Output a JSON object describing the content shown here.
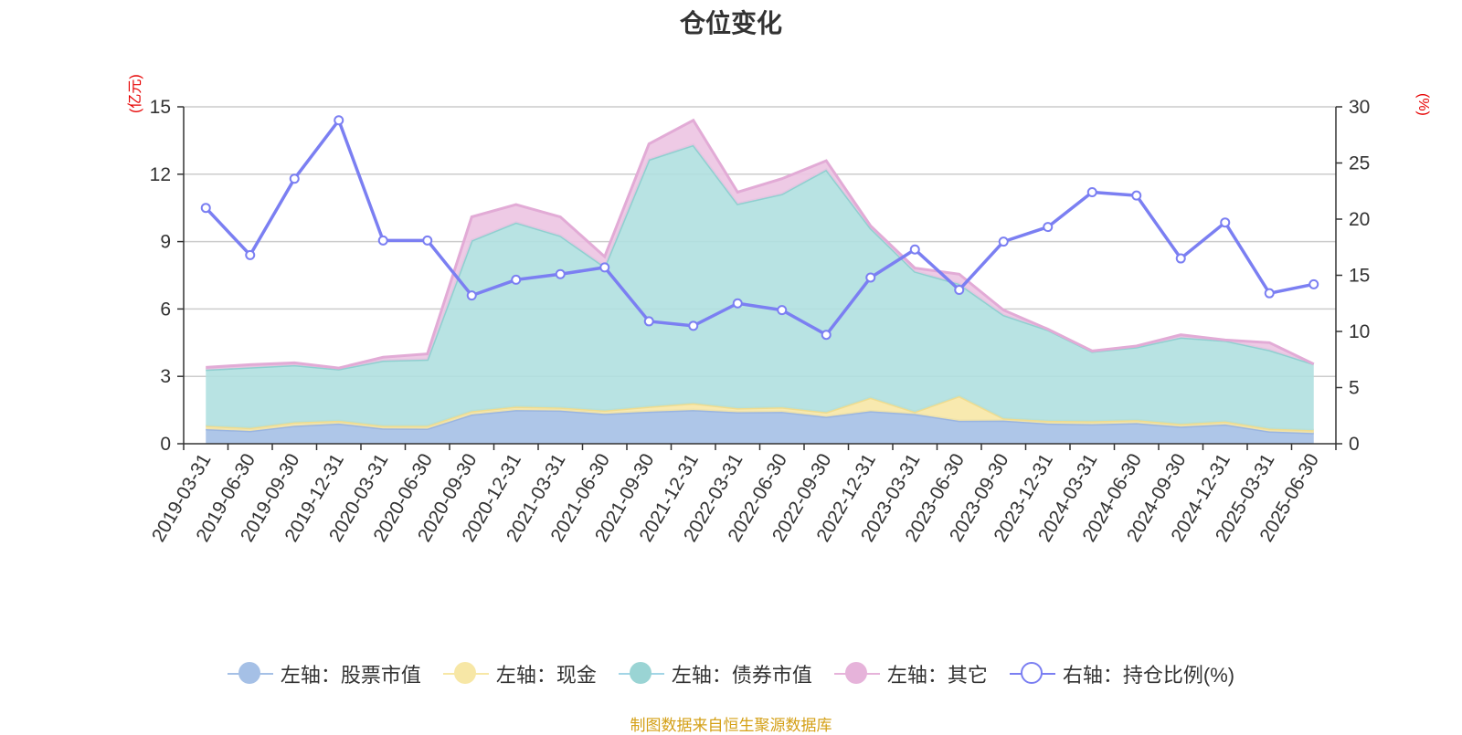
{
  "page": {
    "title": "仓位变化",
    "source": "制图数据来自恒生聚源数据库"
  },
  "units": {
    "left": "(亿元)",
    "right": "(%)"
  },
  "chart_data": {
    "type": "area",
    "title": "仓位变化",
    "categories": [
      "2019-03-31",
      "2019-06-30",
      "2019-09-30",
      "2019-12-31",
      "2020-03-31",
      "2020-06-30",
      "2020-09-30",
      "2020-12-31",
      "2021-03-31",
      "2021-06-30",
      "2021-09-30",
      "2021-12-31",
      "2022-03-31",
      "2022-06-30",
      "2022-09-30",
      "2022-12-31",
      "2023-03-31",
      "2023-06-30",
      "2023-09-30",
      "2023-12-31",
      "2024-03-31",
      "2024-06-30",
      "2024-09-30",
      "2024-12-31",
      "2025-03-31",
      "2025-06-30"
    ],
    "y_left": {
      "unit": "(亿元)",
      "min": 0,
      "max": 15,
      "ticks": [
        0,
        3,
        6,
        9,
        12,
        15
      ]
    },
    "y_right": {
      "unit": "(%)",
      "min": 0,
      "max": 30,
      "ticks": [
        0,
        5,
        10,
        15,
        20,
        25,
        30
      ]
    },
    "grid": true,
    "legend_position": "bottom",
    "stacked": true,
    "series": [
      {
        "name": "左轴：股票市值",
        "axis": "left",
        "type": "area",
        "color": "#a5c0e6",
        "values": [
          0.65,
          0.57,
          0.8,
          0.9,
          0.68,
          0.67,
          1.3,
          1.5,
          1.48,
          1.33,
          1.43,
          1.5,
          1.4,
          1.42,
          1.2,
          1.45,
          1.32,
          1.02,
          1.03,
          0.9,
          0.87,
          0.92,
          0.76,
          0.86,
          0.55,
          0.48
        ]
      },
      {
        "name": "左轴：现金",
        "axis": "left",
        "type": "area",
        "color": "#f7e7a6",
        "values": [
          0.15,
          0.13,
          0.15,
          0.12,
          0.12,
          0.13,
          0.15,
          0.15,
          0.13,
          0.15,
          0.22,
          0.3,
          0.18,
          0.2,
          0.2,
          0.6,
          0.1,
          1.1,
          0.1,
          0.12,
          0.13,
          0.13,
          0.12,
          0.13,
          0.12,
          0.12
        ]
      },
      {
        "name": "左轴：债券市值",
        "axis": "left",
        "type": "area",
        "color": "#b0e0e0",
        "values": [
          2.5,
          2.7,
          2.55,
          2.3,
          2.9,
          2.95,
          7.6,
          8.2,
          7.65,
          6.4,
          11.0,
          11.5,
          9.1,
          9.5,
          10.8,
          7.55,
          6.25,
          5.0,
          4.6,
          4.05,
          3.1,
          3.25,
          3.85,
          3.6,
          3.5,
          2.95
        ]
      },
      {
        "name": "左轴：其它",
        "axis": "left",
        "type": "area",
        "color": "#ecc4e2",
        "values": [
          0.1,
          0.12,
          0.1,
          0.05,
          0.15,
          0.25,
          1.05,
          0.8,
          0.84,
          0.45,
          0.7,
          1.1,
          0.52,
          0.68,
          0.4,
          0.1,
          0.15,
          0.43,
          0.22,
          0.03,
          0.03,
          0.05,
          0.12,
          0.03,
          0.33,
          0.0
        ]
      },
      {
        "name": "右轴：持仓比例(%)",
        "axis": "right",
        "type": "line",
        "color": "#7b7ff2",
        "values": [
          21.0,
          16.8,
          23.6,
          28.8,
          18.1,
          18.1,
          13.2,
          14.6,
          15.1,
          15.7,
          10.9,
          10.5,
          12.5,
          11.9,
          9.7,
          14.8,
          17.3,
          13.7,
          18.0,
          19.3,
          22.4,
          22.1,
          16.5,
          19.7,
          13.4,
          14.2
        ]
      }
    ]
  }
}
